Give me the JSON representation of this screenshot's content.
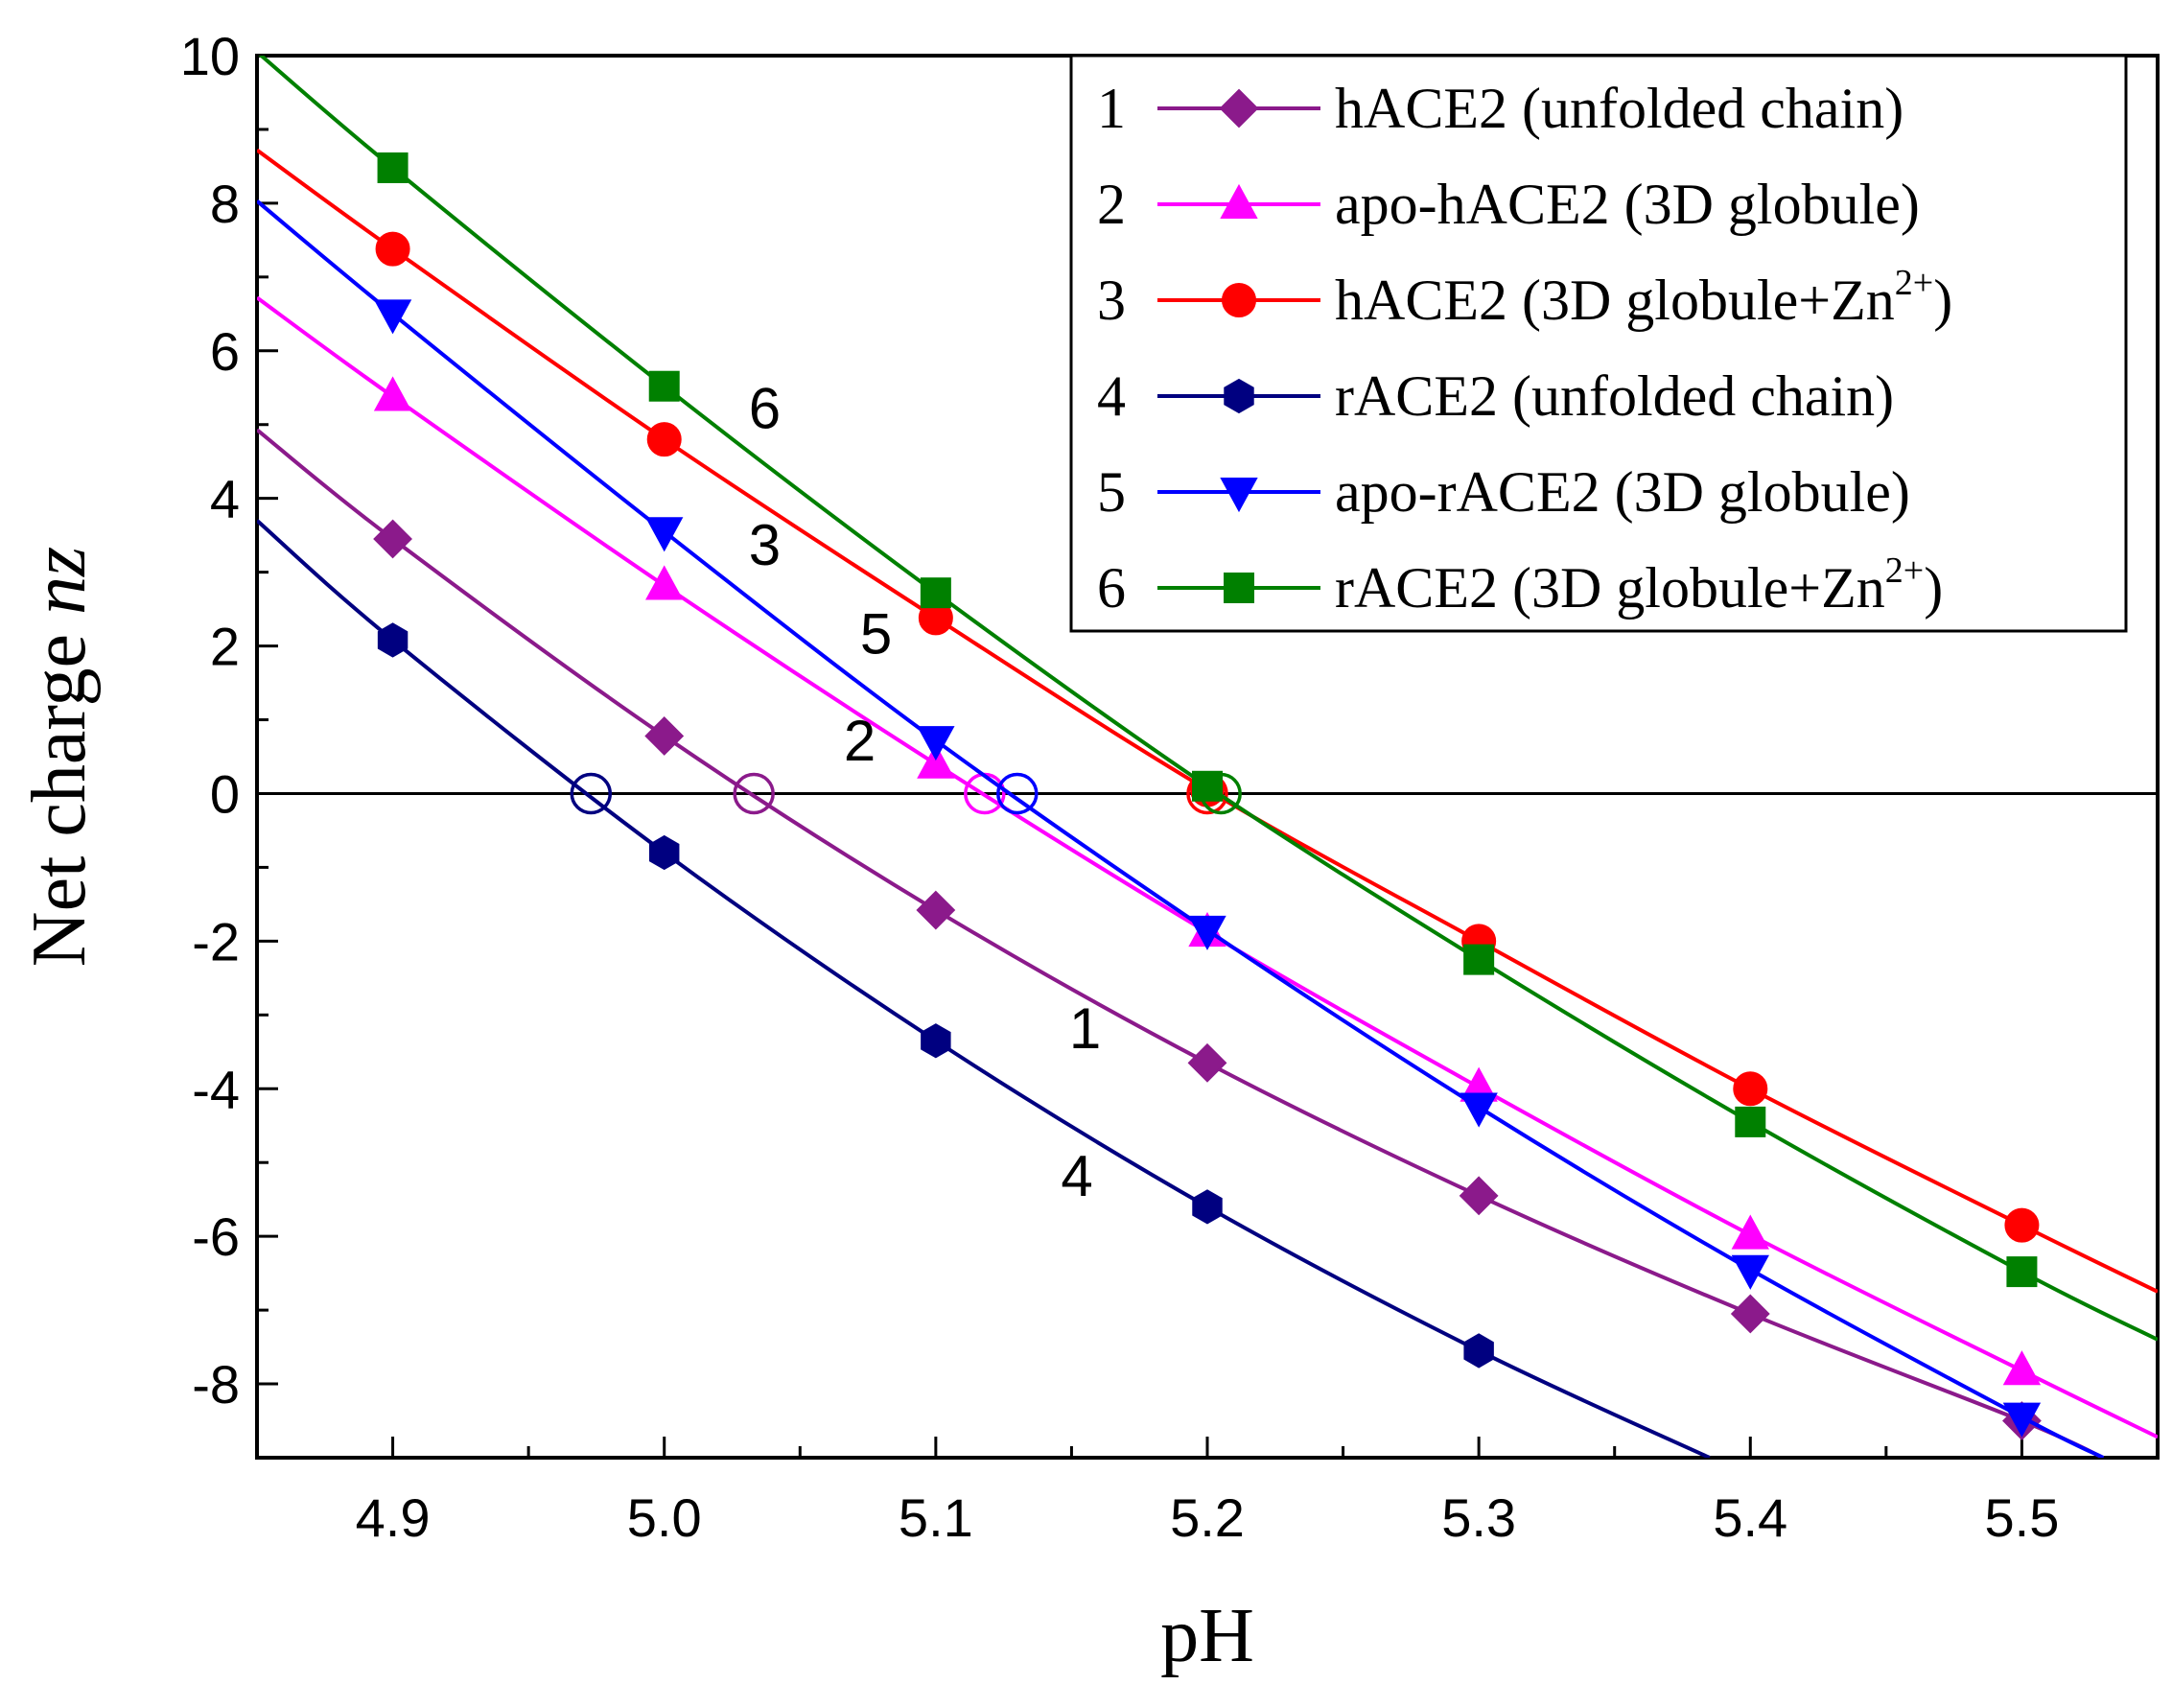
{
  "chart_data": {
    "type": "line",
    "xlabel": "pH",
    "ylabel": "Net charge nz",
    "ylabel_parts": [
      "Net charge ",
      "nz"
    ],
    "xlim": [
      4.85,
      5.55
    ],
    "ylim": [
      -9,
      10
    ],
    "x_ticks": [
      4.9,
      5.0,
      5.1,
      5.2,
      5.3,
      5.4,
      5.5
    ],
    "x_tick_labels": [
      "4.9",
      "5.0",
      "5.1",
      "5.2",
      "5.3",
      "5.4",
      "5.5"
    ],
    "y_ticks": [
      -8,
      -6,
      -4,
      -2,
      0,
      2,
      4,
      6,
      8,
      10
    ],
    "y_tick_labels": [
      "-8",
      "-6",
      "-4",
      "-2",
      "0",
      "2",
      "4",
      "6",
      "8",
      "10"
    ],
    "grid": false,
    "zero_line": true,
    "legend_position": "top-right",
    "series": [
      {
        "number": "1",
        "name": "hACE2 (unfolded chain)",
        "name_parts": [
          "hACE2 (unfolded chain)"
        ],
        "color": "#8b1a8b",
        "marker": "diamond",
        "curve": [
          [
            4.85,
            4.93
          ],
          [
            4.9,
            3.45
          ],
          [
            5.0,
            0.78
          ],
          [
            5.1,
            -1.58
          ],
          [
            5.2,
            -3.65
          ],
          [
            5.3,
            -5.45
          ],
          [
            5.4,
            -7.05
          ],
          [
            5.5,
            -8.5
          ],
          [
            5.53,
            -9.0
          ]
        ],
        "marker_x": [
          4.9,
          5.0,
          5.1,
          5.2,
          5.3,
          5.4,
          5.5
        ],
        "pI": 5.033,
        "label_xy": [
          5.155,
          -3.45
        ]
      },
      {
        "number": "2",
        "name": "apo-hACE2 (3D globule)",
        "name_parts": [
          "apo-hACE2 (3D globule)"
        ],
        "color": "#ff00ff",
        "marker": "triangle-up",
        "curve": [
          [
            4.85,
            6.72
          ],
          [
            4.9,
            5.38
          ],
          [
            5.0,
            2.82
          ],
          [
            5.1,
            0.4
          ],
          [
            5.2,
            -1.88
          ],
          [
            5.3,
            -3.98
          ],
          [
            5.4,
            -5.98
          ],
          [
            5.5,
            -7.82
          ],
          [
            5.55,
            -8.72
          ]
        ],
        "marker_x": [
          4.9,
          5.0,
          5.1,
          5.2,
          5.3,
          5.4,
          5.5
        ],
        "pI": 5.118,
        "label_xy": [
          5.072,
          0.45
        ]
      },
      {
        "number": "3",
        "name": "hACE2 (3D globule+Zn2+)",
        "name_parts": [
          "hACE2 (3D globule+Zn",
          "2+",
          ")"
        ],
        "color": "#ff0000",
        "marker": "circle",
        "curve": [
          [
            4.85,
            8.72
          ],
          [
            4.9,
            7.38
          ],
          [
            5.0,
            4.8
          ],
          [
            5.1,
            2.38
          ],
          [
            5.2,
            0.05
          ],
          [
            5.3,
            -2.0
          ],
          [
            5.4,
            -4.0
          ],
          [
            5.5,
            -5.85
          ],
          [
            5.55,
            -6.75
          ]
        ],
        "marker_x": [
          4.9,
          5.0,
          5.1,
          5.2,
          5.3,
          5.4,
          5.5
        ],
        "pI": 5.2,
        "label_xy": [
          5.037,
          3.1
        ]
      },
      {
        "number": "4",
        "name": "rACE2 (unfolded chain)",
        "name_parts": [
          "rACE2 (unfolded chain)"
        ],
        "color": "#000080",
        "marker": "hexagon",
        "curve": [
          [
            4.85,
            3.7
          ],
          [
            4.9,
            2.08
          ],
          [
            5.0,
            -0.8
          ],
          [
            5.1,
            -3.35
          ],
          [
            5.2,
            -5.6
          ],
          [
            5.3,
            -7.55
          ],
          [
            5.385,
            -9.0
          ]
        ],
        "marker_x": [
          4.9,
          5.0,
          5.1,
          5.2,
          5.3
        ],
        "pI": 4.973,
        "label_xy": [
          5.152,
          -5.45
        ]
      },
      {
        "number": "5",
        "name": "apo-rACE2 (3D globule)",
        "name_parts": [
          "apo-rACE2 (3D globule)"
        ],
        "color": "#0000ff",
        "marker": "triangle-down",
        "curve": [
          [
            4.85,
            8.03
          ],
          [
            4.9,
            6.5
          ],
          [
            5.0,
            3.55
          ],
          [
            5.1,
            0.72
          ],
          [
            5.2,
            -1.85
          ],
          [
            5.3,
            -4.25
          ],
          [
            5.4,
            -6.45
          ],
          [
            5.5,
            -8.45
          ],
          [
            5.53,
            -9.0
          ]
        ],
        "marker_x": [
          4.9,
          5.0,
          5.1,
          5.2,
          5.3,
          5.4,
          5.5
        ],
        "pI": 5.13,
        "label_xy": [
          5.078,
          1.9
        ]
      },
      {
        "number": "6",
        "name": "rACE2 (3D globule+Zn2+)",
        "name_parts": [
          "rACE2 (3D globule+Zn",
          "2+",
          ")"
        ],
        "color": "#008000",
        "marker": "square",
        "curve": [
          [
            4.85,
            10.05
          ],
          [
            4.9,
            8.48
          ],
          [
            5.0,
            5.52
          ],
          [
            5.1,
            2.72
          ],
          [
            5.2,
            0.1
          ],
          [
            5.3,
            -2.25
          ],
          [
            5.4,
            -4.45
          ],
          [
            5.5,
            -6.48
          ],
          [
            5.55,
            -7.4
          ]
        ],
        "marker_x": [
          4.9,
          5.0,
          5.1,
          5.2,
          5.3,
          5.4,
          5.5
        ],
        "pI": 5.205,
        "label_xy": [
          5.037,
          4.95
        ]
      }
    ]
  }
}
